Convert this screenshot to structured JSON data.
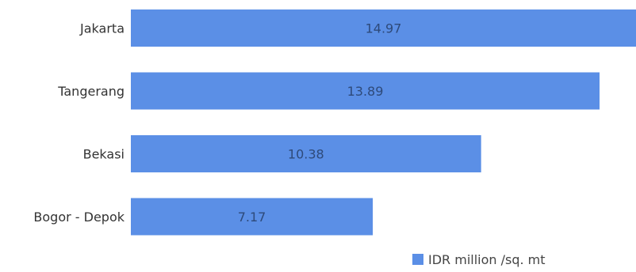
{
  "chart_data": {
    "type": "bar",
    "orientation": "horizontal",
    "categories": [
      "Jakarta",
      "Tangerang",
      "Bekasi",
      "Bogor - Depok"
    ],
    "series": [
      {
        "name": "IDR million /sq. mt",
        "values": [
          14.97,
          13.89,
          10.38,
          7.17
        ],
        "color": "#5b8fe6"
      }
    ],
    "xlim": [
      0,
      14.97
    ],
    "grid": false,
    "legend": "bottom-right",
    "data_labels": true
  }
}
